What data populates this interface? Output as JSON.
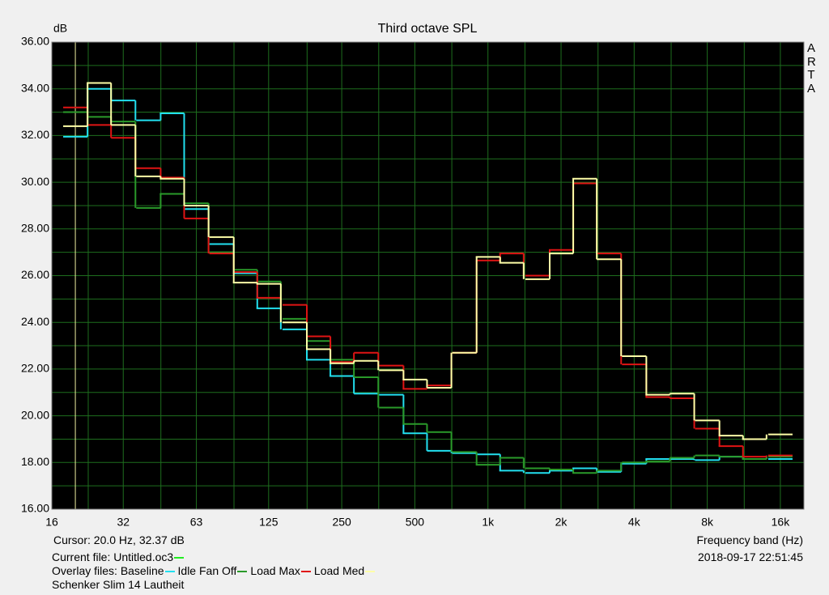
{
  "chart_data": {
    "type": "step",
    "title": "Third octave SPL",
    "y_label": "dB",
    "x_label": "Frequency band (Hz)",
    "brand": "ARTA",
    "x": [
      20,
      25,
      31.5,
      40,
      50,
      63,
      80,
      100,
      125,
      160,
      200,
      250,
      315,
      400,
      500,
      630,
      800,
      1000,
      1250,
      1600,
      2000,
      2500,
      3150,
      4000,
      5000,
      6300,
      8000,
      10000,
      12500,
      16000
    ],
    "xlim": [
      16,
      20000
    ],
    "log_x": true,
    "xticks": [
      16,
      {
        "value": 31.5,
        "label": "32"
      },
      63,
      125,
      250,
      500,
      {
        "value": 1000,
        "label": "1k"
      },
      {
        "value": 2000,
        "label": "2k"
      },
      {
        "value": 4000,
        "label": "4k"
      },
      {
        "value": 8000,
        "label": "8k"
      },
      {
        "value": 16000,
        "label": "16k"
      }
    ],
    "xticks_minor": [
      22.6,
      45,
      90,
      180,
      355,
      710,
      1420,
      2840,
      5680,
      11360
    ],
    "ylim": [
      16,
      36
    ],
    "yticks": [
      {
        "value": 16,
        "label": "16.00"
      },
      {
        "value": 18,
        "label": "18.00"
      },
      {
        "value": 20,
        "label": "20.00"
      },
      {
        "value": 22,
        "label": "22.00"
      },
      {
        "value": 24,
        "label": "24.00"
      },
      {
        "value": 26,
        "label": "26.00"
      },
      {
        "value": 28,
        "label": "28.00"
      },
      {
        "value": 30,
        "label": "30.00"
      },
      {
        "value": 32,
        "label": "32.00"
      },
      {
        "value": 34,
        "label": "34.00"
      },
      {
        "value": 36,
        "label": "36.00"
      }
    ],
    "yticks_minor": [
      17,
      19,
      21,
      23,
      25,
      27,
      29,
      31,
      33,
      35
    ],
    "grid": true,
    "grid_color": "#1e6e1e",
    "background": "#000000",
    "cursor": {
      "x": 20,
      "label": "Cursor:   20.0 Hz, 32.37 dB",
      "color": "#f0f0a0"
    },
    "current_file": {
      "label": "Current file: Untitled.oc3",
      "color": "#22ee22"
    },
    "overlay_label": "Overlay files:",
    "timestamp": "2018-09-17  22:51:45",
    "note": "Schenker Slim 14 Lautheit",
    "series": [
      {
        "name": "Baseline",
        "color": "#22e0f0",
        "values": [
          31.95,
          34.0,
          33.5,
          32.65,
          32.95,
          28.85,
          27.35,
          26.1,
          24.6,
          23.7,
          22.4,
          21.7,
          20.95,
          20.9,
          19.25,
          18.5,
          18.4,
          18.35,
          17.65,
          17.55,
          17.65,
          17.75,
          17.6,
          17.95,
          18.15,
          18.15,
          18.1,
          18.25,
          18.15,
          18.15
        ]
      },
      {
        "name": "Idle Fan Off",
        "color": "#2a9a2a",
        "values": [
          33.0,
          32.8,
          32.6,
          28.9,
          29.5,
          29.1,
          27.0,
          26.25,
          25.75,
          24.15,
          23.2,
          22.4,
          21.65,
          20.35,
          19.65,
          19.3,
          18.45,
          17.9,
          18.2,
          17.75,
          17.7,
          17.55,
          17.65,
          18.0,
          18.05,
          18.2,
          18.3,
          18.25,
          18.15,
          18.25
        ]
      },
      {
        "name": "Load Max",
        "color": "#e01414",
        "values": [
          33.2,
          32.45,
          31.9,
          30.6,
          30.2,
          28.45,
          26.95,
          26.15,
          25.05,
          24.75,
          23.4,
          22.3,
          22.7,
          22.15,
          21.15,
          21.3,
          22.7,
          26.65,
          26.95,
          26.0,
          27.1,
          29.95,
          26.95,
          22.2,
          20.8,
          20.75,
          19.45,
          18.7,
          18.25,
          18.3
        ]
      },
      {
        "name": "Load Med",
        "color": "#ffffa8",
        "values": [
          32.4,
          34.25,
          32.45,
          30.25,
          30.15,
          29.0,
          27.65,
          25.7,
          25.65,
          24.0,
          22.85,
          22.25,
          22.35,
          21.95,
          21.55,
          21.2,
          22.7,
          26.8,
          26.55,
          25.85,
          26.95,
          30.15,
          26.7,
          22.55,
          20.9,
          20.95,
          19.8,
          19.15,
          19.0,
          19.2
        ]
      }
    ]
  }
}
